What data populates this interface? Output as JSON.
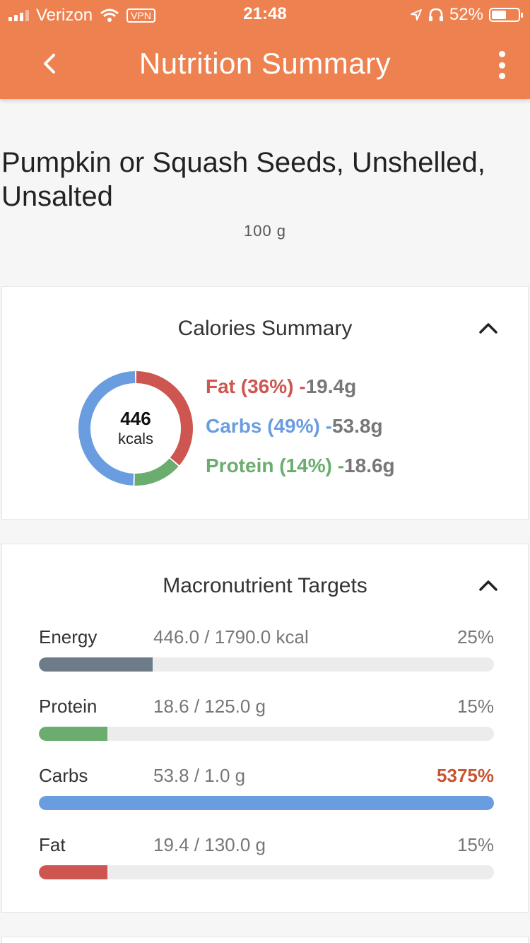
{
  "status": {
    "carrier": "Verizon",
    "vpn": "VPN",
    "time": "21:48",
    "battery": "52%"
  },
  "header": {
    "title": "Nutrition Summary"
  },
  "food": {
    "name": "Pumpkin or Squash Seeds, Unshelled, Unsalted",
    "serving": "100 g"
  },
  "calories": {
    "title": "Calories Summary",
    "total": "446",
    "unit": "kcals",
    "legend": [
      {
        "label": "Fat (36%)",
        "sep": " -",
        "value": "19.4g",
        "color": "#cd5650",
        "percent": 36
      },
      {
        "label": "Carbs (49%)",
        "sep": " -",
        "value": "53.8g",
        "color": "#6a9de0",
        "percent": 49
      },
      {
        "label": "Protein (14%)",
        "sep": " -",
        "value": "18.6g",
        "color": "#6aad6e",
        "percent": 14
      }
    ]
  },
  "macros": {
    "title": "Macronutrient Targets",
    "items": [
      {
        "name": "Energy",
        "amount": "446.0 / 1790.0 kcal",
        "percent": "25%",
        "fill": 0.25,
        "color": "#6e7c89",
        "over": false
      },
      {
        "name": "Protein",
        "amount": "18.6 / 125.0 g",
        "percent": "15%",
        "fill": 0.15,
        "color": "#6aad6e",
        "over": false
      },
      {
        "name": "Carbs",
        "amount": "53.8 / 1.0 g",
        "percent": "5375%",
        "fill": 1.0,
        "color": "#6a9de0",
        "over": true
      },
      {
        "name": "Fat",
        "amount": "19.4 / 130.0 g",
        "percent": "15%",
        "fill": 0.15,
        "color": "#cd5650",
        "over": false
      }
    ]
  }
}
